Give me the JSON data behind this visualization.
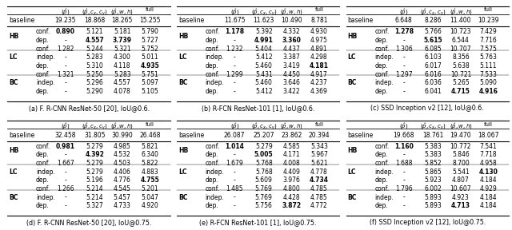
{
  "tables": [
    {
      "caption": "(a) F. R-CNN ResNet-50 [20], IoU@0.6.",
      "baseline": [
        "baseline",
        "",
        "19.235",
        "18.868",
        "18.265",
        "15.255"
      ],
      "sections": [
        {
          "label": "HB",
          "rows": [
            {
              "name": "conf.",
              "p": "0.890",
              "pcxcy": "5.121",
              "pwh": "5.181",
              "full": "5.790",
              "bold_p": true,
              "bold_pcxcy": false,
              "bold_pwh": false,
              "bold_full": false
            },
            {
              "name": "dep.",
              "p": "-",
              "pcxcy": "4.557",
              "pwh": "3.739",
              "full": "5.727",
              "bold_p": false,
              "bold_pcxcy": true,
              "bold_pwh": true,
              "bold_full": false
            }
          ]
        },
        {
          "label": "LC",
          "rows": [
            {
              "name": "conf.",
              "p": "1.282",
              "pcxcy": "5.244",
              "pwh": "5.321",
              "full": "5.752",
              "bold_p": false,
              "bold_pcxcy": false,
              "bold_pwh": false,
              "bold_full": false
            },
            {
              "name": "indep.",
              "p": "-",
              "pcxcy": "5.283",
              "pwh": "4.300",
              "full": "5.011",
              "bold_p": false,
              "bold_pcxcy": false,
              "bold_pwh": false,
              "bold_full": false
            },
            {
              "name": "dep.",
              "p": "-",
              "pcxcy": "5.310",
              "pwh": "4.118",
              "full": "4.935",
              "bold_p": false,
              "bold_pcxcy": false,
              "bold_pwh": false,
              "bold_full": true
            }
          ]
        },
        {
          "label": "BC",
          "rows": [
            {
              "name": "conf.",
              "p": "1.321",
              "pcxcy": "5.250",
              "pwh": "5.283",
              "full": "5.751",
              "bold_p": false,
              "bold_pcxcy": false,
              "bold_pwh": false,
              "bold_full": false
            },
            {
              "name": "indep.",
              "p": "-",
              "pcxcy": "5.296",
              "pwh": "4.557",
              "full": "5.097",
              "bold_p": false,
              "bold_pcxcy": false,
              "bold_pwh": false,
              "bold_full": false
            },
            {
              "name": "dep.",
              "p": "-",
              "pcxcy": "5.290",
              "pwh": "4.078",
              "full": "5.105",
              "bold_p": false,
              "bold_pcxcy": false,
              "bold_pwh": false,
              "bold_full": false
            }
          ]
        }
      ]
    },
    {
      "caption": "(b) R-FCN ResNet-101 [1], IoU@0.6.",
      "baseline": [
        "baseline",
        "",
        "11.675",
        "11.623",
        "10.490",
        "8.781"
      ],
      "sections": [
        {
          "label": "HB",
          "rows": [
            {
              "name": "conf.",
              "p": "1.178",
              "pcxcy": "5.392",
              "pwh": "4.332",
              "full": "4.930",
              "bold_p": true,
              "bold_pcxcy": false,
              "bold_pwh": false,
              "bold_full": false
            },
            {
              "name": "dep.",
              "p": "-",
              "pcxcy": "4.991",
              "pwh": "3.360",
              "full": "4.975",
              "bold_p": false,
              "bold_pcxcy": true,
              "bold_pwh": true,
              "bold_full": false
            }
          ]
        },
        {
          "label": "LC",
          "rows": [
            {
              "name": "conf.",
              "p": "1.232",
              "pcxcy": "5.404",
              "pwh": "4.437",
              "full": "4.891",
              "bold_p": false,
              "bold_pcxcy": false,
              "bold_pwh": false,
              "bold_full": false
            },
            {
              "name": "indep.",
              "p": "-",
              "pcxcy": "5.412",
              "pwh": "3.387",
              "full": "4.298",
              "bold_p": false,
              "bold_pcxcy": false,
              "bold_pwh": false,
              "bold_full": false
            },
            {
              "name": "dep.",
              "p": "-",
              "pcxcy": "5.460",
              "pwh": "3.419",
              "full": "4.181",
              "bold_p": false,
              "bold_pcxcy": false,
              "bold_pwh": false,
              "bold_full": true
            }
          ]
        },
        {
          "label": "BC",
          "rows": [
            {
              "name": "conf.",
              "p": "1.299",
              "pcxcy": "5.431",
              "pwh": "4.450",
              "full": "4.917",
              "bold_p": false,
              "bold_pcxcy": false,
              "bold_pwh": false,
              "bold_full": false
            },
            {
              "name": "indep.",
              "p": "-",
              "pcxcy": "5.460",
              "pwh": "3.646",
              "full": "4.237",
              "bold_p": false,
              "bold_pcxcy": false,
              "bold_pwh": false,
              "bold_full": false
            },
            {
              "name": "dep.",
              "p": "-",
              "pcxcy": "5.412",
              "pwh": "3.422",
              "full": "4.369",
              "bold_p": false,
              "bold_pcxcy": false,
              "bold_pwh": false,
              "bold_full": false
            }
          ]
        }
      ]
    },
    {
      "caption": "(c) SSD Inception v2 [12], IoU@0.6.",
      "baseline": [
        "baseline",
        "",
        "6.648",
        "8.286",
        "11.400",
        "10.239"
      ],
      "sections": [
        {
          "label": "HB",
          "rows": [
            {
              "name": "conf.",
              "p": "1.278",
              "pcxcy": "5.766",
              "pwh": "10.723",
              "full": "7.429",
              "bold_p": true,
              "bold_pcxcy": false,
              "bold_pwh": false,
              "bold_full": false
            },
            {
              "name": "dep.",
              "p": "-",
              "pcxcy": "5.615",
              "pwh": "6.544",
              "full": "7.716",
              "bold_p": false,
              "bold_pcxcy": true,
              "bold_pwh": false,
              "bold_full": false
            }
          ]
        },
        {
          "label": "LC",
          "rows": [
            {
              "name": "conf.",
              "p": "1.306",
              "pcxcy": "6.085",
              "pwh": "10.707",
              "full": "7.575",
              "bold_p": false,
              "bold_pcxcy": false,
              "bold_pwh": false,
              "bold_full": false
            },
            {
              "name": "indep.",
              "p": "-",
              "pcxcy": "6.103",
              "pwh": "8.356",
              "full": "5.763",
              "bold_p": false,
              "bold_pcxcy": false,
              "bold_pwh": false,
              "bold_full": false
            },
            {
              "name": "dep.",
              "p": "-",
              "pcxcy": "6.017",
              "pwh": "5.638",
              "full": "5.111",
              "bold_p": false,
              "bold_pcxcy": false,
              "bold_pwh": false,
              "bold_full": false
            }
          ]
        },
        {
          "label": "BC",
          "rows": [
            {
              "name": "conf.",
              "p": "1.297",
              "pcxcy": "6.016",
              "pwh": "10.721",
              "full": "7.533",
              "bold_p": false,
              "bold_pcxcy": false,
              "bold_pwh": false,
              "bold_full": false
            },
            {
              "name": "indep.",
              "p": "-",
              "pcxcy": "6.036",
              "pwh": "5.265",
              "full": "5.090",
              "bold_p": false,
              "bold_pcxcy": false,
              "bold_pwh": false,
              "bold_full": false
            },
            {
              "name": "dep.",
              "p": "-",
              "pcxcy": "6.041",
              "pwh": "4.715",
              "full": "4.916",
              "bold_p": false,
              "bold_pcxcy": false,
              "bold_pwh": true,
              "bold_full": true
            }
          ]
        }
      ]
    },
    {
      "caption": "(d) F. R-CNN ResNet-50 [20], IoU@0.75.",
      "baseline": [
        "baseline",
        "",
        "32.458",
        "31.805",
        "30.990",
        "26.468"
      ],
      "sections": [
        {
          "label": "HB",
          "rows": [
            {
              "name": "conf.",
              "p": "0.981",
              "pcxcy": "5.279",
              "pwh": "4.985",
              "full": "5.821",
              "bold_p": true,
              "bold_pcxcy": false,
              "bold_pwh": false,
              "bold_full": false
            },
            {
              "name": "dep.",
              "p": "-",
              "pcxcy": "4.392",
              "pwh": "4.532",
              "full": "6.340",
              "bold_p": false,
              "bold_pcxcy": true,
              "bold_pwh": false,
              "bold_full": false
            }
          ]
        },
        {
          "label": "LC",
          "rows": [
            {
              "name": "conf.",
              "p": "1.667",
              "pcxcy": "5.279",
              "pwh": "4.503",
              "full": "5.822",
              "bold_p": false,
              "bold_pcxcy": false,
              "bold_pwh": false,
              "bold_full": false
            },
            {
              "name": "indep.",
              "p": "-",
              "pcxcy": "5.279",
              "pwh": "4.406",
              "full": "4.883",
              "bold_p": false,
              "bold_pcxcy": false,
              "bold_pwh": false,
              "bold_full": false
            },
            {
              "name": "dep.",
              "p": "-",
              "pcxcy": "5.196",
              "pwh": "4.776",
              "full": "4.755",
              "bold_p": false,
              "bold_pcxcy": false,
              "bold_pwh": false,
              "bold_full": true
            }
          ]
        },
        {
          "label": "BC",
          "rows": [
            {
              "name": "conf.",
              "p": "1.266",
              "pcxcy": "5.214",
              "pwh": "4.545",
              "full": "5.201",
              "bold_p": false,
              "bold_pcxcy": false,
              "bold_pwh": false,
              "bold_full": false
            },
            {
              "name": "indep.",
              "p": "-",
              "pcxcy": "5.214",
              "pwh": "5.457",
              "full": "5.047",
              "bold_p": false,
              "bold_pcxcy": false,
              "bold_pwh": false,
              "bold_full": false
            },
            {
              "name": "dep.",
              "p": "-",
              "pcxcy": "5.327",
              "pwh": "4.733",
              "full": "4.920",
              "bold_p": false,
              "bold_pcxcy": false,
              "bold_pwh": false,
              "bold_full": false
            }
          ]
        }
      ]
    },
    {
      "caption": "(e) R-FCN ResNet-101 [1], IoU@0.75.",
      "baseline": [
        "baseline",
        "",
        "26.087",
        "25.207",
        "23.862",
        "20.394"
      ],
      "sections": [
        {
          "label": "HB",
          "rows": [
            {
              "name": "conf.",
              "p": "1.014",
              "pcxcy": "5.279",
              "pwh": "4.585",
              "full": "5.343",
              "bold_p": true,
              "bold_pcxcy": false,
              "bold_pwh": false,
              "bold_full": false
            },
            {
              "name": "dep.",
              "p": "-",
              "pcxcy": "5.005",
              "pwh": "4.171",
              "full": "5.967",
              "bold_p": false,
              "bold_pcxcy": true,
              "bold_pwh": false,
              "bold_full": false
            }
          ]
        },
        {
          "label": "LC",
          "rows": [
            {
              "name": "conf.",
              "p": "1.679",
              "pcxcy": "5.768",
              "pwh": "4.008",
              "full": "5.621",
              "bold_p": false,
              "bold_pcxcy": false,
              "bold_pwh": false,
              "bold_full": false
            },
            {
              "name": "indep.",
              "p": "-",
              "pcxcy": "5.768",
              "pwh": "4.409",
              "full": "4.778",
              "bold_p": false,
              "bold_pcxcy": false,
              "bold_pwh": false,
              "bold_full": false
            },
            {
              "name": "dep.",
              "p": "-",
              "pcxcy": "5.609",
              "pwh": "3.976",
              "full": "4.734",
              "bold_p": false,
              "bold_pcxcy": false,
              "bold_pwh": false,
              "bold_full": true
            }
          ]
        },
        {
          "label": "BC",
          "rows": [
            {
              "name": "conf.",
              "p": "1.485",
              "pcxcy": "5.769",
              "pwh": "4.800",
              "full": "4.785",
              "bold_p": false,
              "bold_pcxcy": false,
              "bold_pwh": false,
              "bold_full": false
            },
            {
              "name": "indep.",
              "p": "-",
              "pcxcy": "5.769",
              "pwh": "4.428",
              "full": "4.785",
              "bold_p": false,
              "bold_pcxcy": false,
              "bold_pwh": false,
              "bold_full": false
            },
            {
              "name": "dep.",
              "p": "-",
              "pcxcy": "5.756",
              "pwh": "3.872",
              "full": "4.772",
              "bold_p": false,
              "bold_pcxcy": false,
              "bold_pwh": true,
              "bold_full": false
            }
          ]
        }
      ]
    },
    {
      "caption": "(f) SSD Inception v2 [12], IoU@0.75.",
      "baseline": [
        "baseline",
        "",
        "19.668",
        "18.761",
        "19.470",
        "18.067"
      ],
      "sections": [
        {
          "label": "HB",
          "rows": [
            {
              "name": "conf.",
              "p": "1.160",
              "pcxcy": "5.383",
              "pwh": "10.772",
              "full": "7.541",
              "bold_p": true,
              "bold_pcxcy": false,
              "bold_pwh": false,
              "bold_full": false
            },
            {
              "name": "dep.",
              "p": "-",
              "pcxcy": "5.383",
              "pwh": "5.846",
              "full": "7.718",
              "bold_p": false,
              "bold_pcxcy": false,
              "bold_pwh": false,
              "bold_full": false
            }
          ]
        },
        {
          "label": "LC",
          "rows": [
            {
              "name": "conf.",
              "p": "1.688",
              "pcxcy": "5.852",
              "pwh": "8.700",
              "full": "4.958",
              "bold_p": false,
              "bold_pcxcy": false,
              "bold_pwh": false,
              "bold_full": false
            },
            {
              "name": "indep.",
              "p": "-",
              "pcxcy": "5.865",
              "pwh": "5.541",
              "full": "4.130",
              "bold_p": false,
              "bold_pcxcy": false,
              "bold_pwh": false,
              "bold_full": true
            },
            {
              "name": "dep.",
              "p": "-",
              "pcxcy": "5.923",
              "pwh": "4.807",
              "full": "4.184",
              "bold_p": false,
              "bold_pcxcy": false,
              "bold_pwh": false,
              "bold_full": false
            }
          ]
        },
        {
          "label": "BC",
          "rows": [
            {
              "name": "conf.",
              "p": "1.796",
              "pcxcy": "6.002",
              "pwh": "10.607",
              "full": "4.929",
              "bold_p": false,
              "bold_pcxcy": false,
              "bold_pwh": false,
              "bold_full": false
            },
            {
              "name": "indep.",
              "p": "-",
              "pcxcy": "5.893",
              "pwh": "4.923",
              "full": "4.184",
              "bold_p": false,
              "bold_pcxcy": false,
              "bold_pwh": false,
              "bold_full": false
            },
            {
              "name": "dep.",
              "p": "-",
              "pcxcy": "5.893",
              "pwh": "4.713",
              "full": "4.184",
              "bold_p": false,
              "bold_pcxcy": false,
              "bold_pwh": true,
              "bold_full": false
            }
          ]
        }
      ]
    }
  ],
  "col_headers": [
    "$({\\hat{p}})$",
    "$({\\hat{p}}, c_x, c_y)$",
    "$({\\hat{p}}, w, h)$",
    "full"
  ],
  "fontsize": 5.5,
  "bg_color": "#ffffff"
}
